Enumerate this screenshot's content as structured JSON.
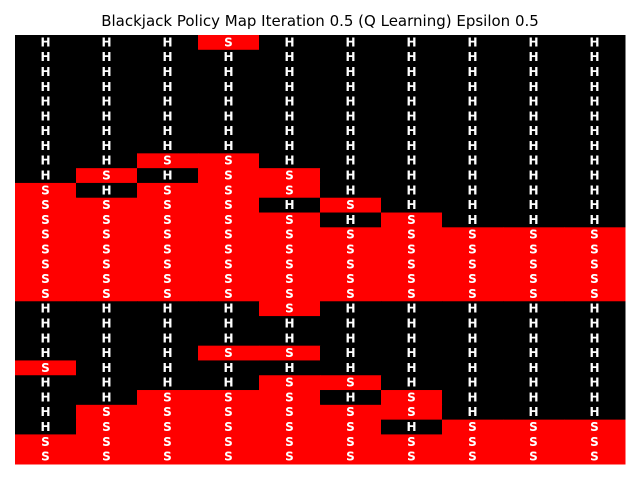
{
  "chart_data": {
    "type": "heatmap",
    "title": "Blackjack Policy Map Iteration 0.5 (Q Learning) Epsilon 0.5",
    "legend": {
      "H": "#000000",
      "S": "#ff0000"
    },
    "grid": false,
    "cells": [
      [
        "H",
        "H",
        "H",
        "S",
        "H",
        "H",
        "H",
        "H",
        "H",
        "H"
      ],
      [
        "H",
        "H",
        "H",
        "H",
        "H",
        "H",
        "H",
        "H",
        "H",
        "H"
      ],
      [
        "H",
        "H",
        "H",
        "H",
        "H",
        "H",
        "H",
        "H",
        "H",
        "H"
      ],
      [
        "H",
        "H",
        "H",
        "H",
        "H",
        "H",
        "H",
        "H",
        "H",
        "H"
      ],
      [
        "H",
        "H",
        "H",
        "H",
        "H",
        "H",
        "H",
        "H",
        "H",
        "H"
      ],
      [
        "H",
        "H",
        "H",
        "H",
        "H",
        "H",
        "H",
        "H",
        "H",
        "H"
      ],
      [
        "H",
        "H",
        "H",
        "H",
        "H",
        "H",
        "H",
        "H",
        "H",
        "H"
      ],
      [
        "H",
        "H",
        "H",
        "H",
        "H",
        "H",
        "H",
        "H",
        "H",
        "H"
      ],
      [
        "H",
        "H",
        "S",
        "S",
        "H",
        "H",
        "H",
        "H",
        "H",
        "H"
      ],
      [
        "H",
        "S",
        "H",
        "S",
        "S",
        "H",
        "H",
        "H",
        "H",
        "H"
      ],
      [
        "S",
        "H",
        "S",
        "S",
        "S",
        "H",
        "H",
        "H",
        "H",
        "H"
      ],
      [
        "S",
        "S",
        "S",
        "S",
        "H",
        "S",
        "H",
        "H",
        "H",
        "H"
      ],
      [
        "S",
        "S",
        "S",
        "S",
        "S",
        "H",
        "S",
        "H",
        "H",
        "H"
      ],
      [
        "S",
        "S",
        "S",
        "S",
        "S",
        "S",
        "S",
        "S",
        "S",
        "S"
      ],
      [
        "S",
        "S",
        "S",
        "S",
        "S",
        "S",
        "S",
        "S",
        "S",
        "S"
      ],
      [
        "S",
        "S",
        "S",
        "S",
        "S",
        "S",
        "S",
        "S",
        "S",
        "S"
      ],
      [
        "S",
        "S",
        "S",
        "S",
        "S",
        "S",
        "S",
        "S",
        "S",
        "S"
      ],
      [
        "S",
        "S",
        "S",
        "S",
        "S",
        "S",
        "S",
        "S",
        "S",
        "S"
      ],
      [
        "H",
        "H",
        "H",
        "H",
        "S",
        "H",
        "H",
        "H",
        "H",
        "H"
      ],
      [
        "H",
        "H",
        "H",
        "H",
        "H",
        "H",
        "H",
        "H",
        "H",
        "H"
      ],
      [
        "H",
        "H",
        "H",
        "H",
        "H",
        "H",
        "H",
        "H",
        "H",
        "H"
      ],
      [
        "H",
        "H",
        "H",
        "S",
        "S",
        "H",
        "H",
        "H",
        "H",
        "H"
      ],
      [
        "S",
        "H",
        "H",
        "H",
        "H",
        "H",
        "H",
        "H",
        "H",
        "H"
      ],
      [
        "H",
        "H",
        "H",
        "H",
        "S",
        "S",
        "H",
        "H",
        "H",
        "H"
      ],
      [
        "H",
        "H",
        "S",
        "S",
        "S",
        "H",
        "S",
        "H",
        "H",
        "H"
      ],
      [
        "H",
        "S",
        "S",
        "S",
        "S",
        "S",
        "S",
        "H",
        "H",
        "H"
      ],
      [
        "H",
        "S",
        "S",
        "S",
        "S",
        "S",
        "H",
        "S",
        "S",
        "S"
      ],
      [
        "S",
        "S",
        "S",
        "S",
        "S",
        "S",
        "S",
        "S",
        "S",
        "S"
      ],
      [
        "S",
        "S",
        "S",
        "S",
        "S",
        "S",
        "S",
        "S",
        "S",
        "S"
      ]
    ]
  }
}
